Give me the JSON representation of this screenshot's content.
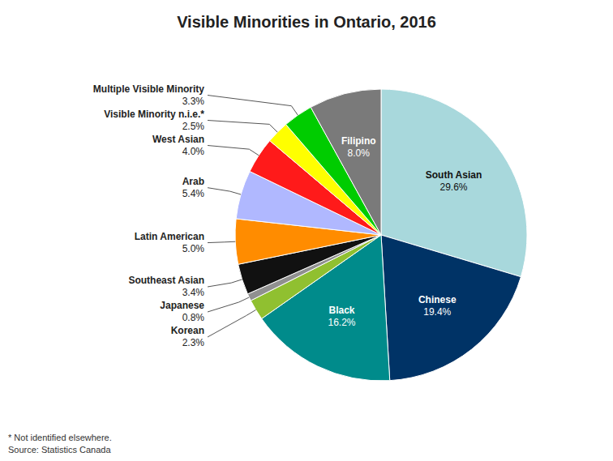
{
  "chart_data": {
    "type": "pie",
    "title": "Visible Minorities in Ontario, 2016",
    "categories": [
      "South Asian",
      "Chinese",
      "Black",
      "Korean",
      "Japanese",
      "Southeast Asian",
      "Latin American",
      "Arab",
      "West Asian",
      "Visible Minority n.i.e.*",
      "Multiple Visible Minority",
      "Filipino"
    ],
    "values": [
      29.6,
      19.4,
      16.2,
      2.3,
      0.8,
      3.4,
      5.0,
      5.4,
      4.0,
      2.5,
      3.3,
      8.0
    ],
    "value_labels": [
      "29.6%",
      "19.4%",
      "16.2%",
      "2.3%",
      "0.8%",
      "3.4%",
      "5.0%",
      "5.4%",
      "4.0%",
      "2.5%",
      "3.3%",
      "8.0%"
    ],
    "colors": [
      "#a8d8dc",
      "#003366",
      "#008b8b",
      "#90c030",
      "#909090",
      "#111111",
      "#ff8c00",
      "#b0b8ff",
      "#ff1a1a",
      "#ffff00",
      "#00cc00",
      "#7a7a7a"
    ],
    "data_labels": true,
    "annotations": [
      "* Not identified elsewhere.",
      "Source: Statistics Canada"
    ]
  }
}
